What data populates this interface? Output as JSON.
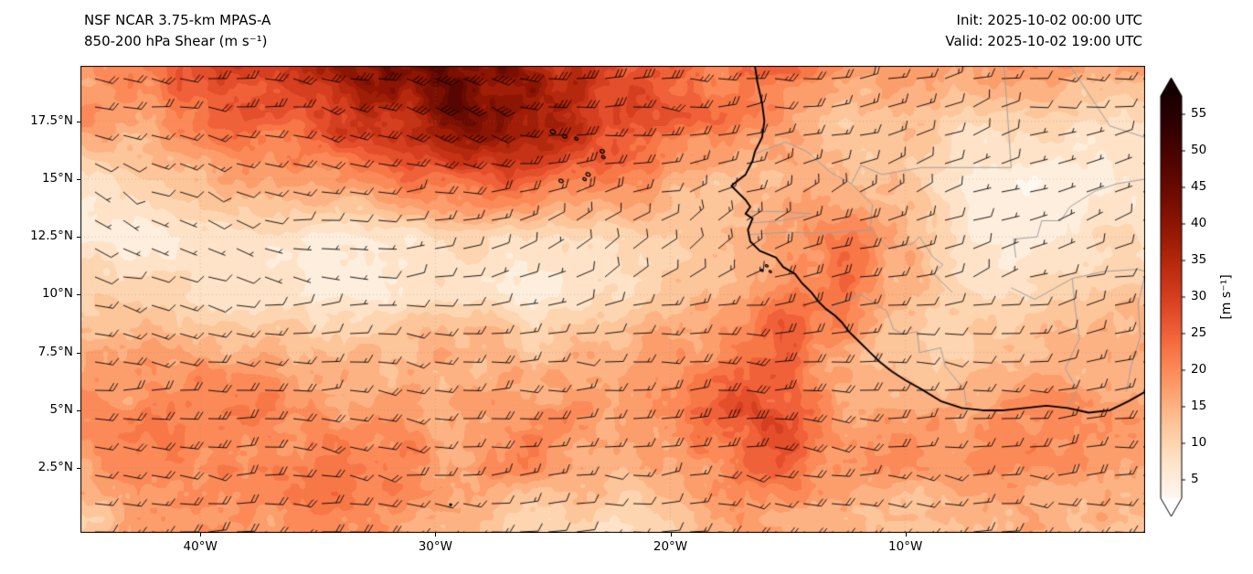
{
  "header": {
    "title_line1": "NSF NCAR 3.75-km MPAS-A",
    "title_line2": "850-200 hPa Shear (m s⁻¹)",
    "init_label": "Init: 2025-10-02 00:00 UTC",
    "valid_label": "Valid: 2025-10-02 19:00 UTC"
  },
  "chart_data": {
    "type": "heatmap",
    "title": "850-200 hPa Shear (m s⁻¹)",
    "model": "NSF NCAR 3.75-km MPAS-A",
    "init_time": "2025-10-02 00:00 UTC",
    "valid_time": "2025-10-02 19:00 UTC",
    "units": "m s⁻¹",
    "extent": {
      "lon_min": -45.1,
      "lon_max": 0.2,
      "lat_min": -0.3,
      "lat_max": 19.9
    },
    "xticks": [
      {
        "value": -40,
        "label": "40°W"
      },
      {
        "value": -30,
        "label": "30°W"
      },
      {
        "value": -20,
        "label": "20°W"
      },
      {
        "value": -10,
        "label": "10°W"
      }
    ],
    "yticks": [
      {
        "value": 17.5,
        "label": "17.5°N"
      },
      {
        "value": 15,
        "label": "15°N"
      },
      {
        "value": 12.5,
        "label": "12.5°N"
      },
      {
        "value": 10,
        "label": "10°N"
      },
      {
        "value": 7.5,
        "label": "7.5°N"
      },
      {
        "value": 5,
        "label": "5°N"
      },
      {
        "value": 2.5,
        "label": "2.5°N"
      }
    ],
    "colorbar": {
      "label": "[m s⁻¹]",
      "tick_values": [
        5,
        10,
        15,
        20,
        25,
        30,
        35,
        40,
        45,
        50,
        55
      ],
      "vmin": 2.5,
      "vmax": 57.5,
      "level_step": 2.5,
      "over_color": "#140000",
      "under_color": "#ffffff",
      "stops": [
        [
          0,
          "#ffffff"
        ],
        [
          2.5,
          "#fff8f1"
        ],
        [
          5,
          "#feeedd"
        ],
        [
          7.5,
          "#fee3c8"
        ],
        [
          10,
          "#fdd5b0"
        ],
        [
          12.5,
          "#fdc59a"
        ],
        [
          15,
          "#fdb283"
        ],
        [
          17.5,
          "#fc9e6c"
        ],
        [
          20,
          "#fc8a58"
        ],
        [
          22.5,
          "#f87747"
        ],
        [
          25,
          "#f16139"
        ],
        [
          27.5,
          "#e54e2b"
        ],
        [
          30,
          "#d63e20"
        ],
        [
          32.5,
          "#c63215"
        ],
        [
          35,
          "#b4280d"
        ],
        [
          37.5,
          "#a01d07"
        ],
        [
          40,
          "#8d1504"
        ],
        [
          42.5,
          "#7a0f02"
        ],
        [
          45,
          "#670a01"
        ],
        [
          47.5,
          "#570601"
        ],
        [
          50,
          "#470300"
        ],
        [
          52.5,
          "#370100"
        ],
        [
          55,
          "#280000"
        ],
        [
          57.5,
          "#1c0000"
        ]
      ]
    },
    "wind_barbs": {
      "full_barb": 10,
      "half_barb": 5,
      "flag": 50,
      "calm_threshold": 2.5
    },
    "grid": {
      "lons": [
        -45,
        -42.5,
        -40,
        -37.5,
        -35,
        -32.5,
        -30,
        -27.5,
        -25,
        -22.5,
        -20,
        -17.5,
        -15,
        -12.5,
        -10,
        -7.5,
        -5,
        -2.5,
        0
      ],
      "lats": [
        20,
        17.5,
        15,
        12.5,
        10,
        7.5,
        5,
        2.5,
        0
      ],
      "shear_ms": [
        [
          22,
          24,
          26,
          28,
          31,
          40,
          46,
          44,
          38,
          33,
          28,
          25,
          22,
          20,
          18,
          17,
          16,
          16,
          18
        ],
        [
          17,
          19,
          21,
          23,
          26,
          31,
          37,
          36,
          32,
          27,
          23,
          19,
          16,
          14,
          12,
          10,
          9,
          9,
          11
        ],
        [
          9,
          11,
          13,
          15,
          17,
          19,
          22,
          24,
          22,
          19,
          15,
          14,
          12,
          14,
          11,
          7,
          5,
          5,
          7
        ],
        [
          6,
          5,
          6,
          7,
          7,
          7,
          8,
          8,
          9,
          9,
          10,
          13,
          17,
          19,
          13,
          8,
          6,
          7,
          9
        ],
        [
          12,
          11,
          9,
          7,
          6,
          6,
          7,
          7,
          6,
          8,
          11,
          16,
          21,
          20,
          14,
          9,
          8,
          10,
          12
        ],
        [
          16,
          18,
          17,
          15,
          15,
          15,
          16,
          17,
          14,
          12,
          18,
          22,
          23,
          17,
          12,
          10,
          12,
          14,
          15
        ],
        [
          18,
          20,
          22,
          21,
          20,
          18,
          18,
          20,
          18,
          15,
          22,
          31,
          26,
          20,
          16,
          15,
          17,
          18,
          18
        ],
        [
          15,
          18,
          21,
          22,
          20,
          19,
          18,
          18,
          16,
          13,
          16,
          21,
          22,
          18,
          16,
          16,
          18,
          18,
          16
        ],
        [
          13,
          16,
          18,
          19,
          18,
          16,
          13,
          12,
          10,
          7,
          11,
          16,
          18,
          16,
          13,
          13,
          16,
          16,
          13
        ]
      ],
      "wind_from_deg": [
        [
          100,
          100,
          100,
          100,
          105,
          105,
          105,
          105,
          100,
          100,
          95,
          95,
          90,
          85,
          80,
          80,
          85,
          90,
          95
        ],
        [
          100,
          100,
          105,
          105,
          105,
          110,
          110,
          105,
          100,
          95,
          90,
          85,
          80,
          75,
          70,
          70,
          75,
          80,
          85
        ],
        [
          120,
          115,
          110,
          105,
          100,
          100,
          95,
          90,
          85,
          80,
          75,
          70,
          65,
          60,
          60,
          65,
          70,
          80,
          90
        ],
        [
          130,
          120,
          110,
          100,
          90,
          80,
          70,
          60,
          50,
          45,
          50,
          60,
          70,
          70,
          65,
          60,
          60,
          70,
          80
        ],
        [
          110,
          105,
          100,
          95,
          90,
          85,
          80,
          75,
          70,
          65,
          70,
          75,
          80,
          85,
          85,
          80,
          75,
          75,
          80
        ],
        [
          95,
          95,
          95,
          95,
          95,
          95,
          95,
          90,
          90,
          85,
          85,
          90,
          95,
          95,
          95,
          90,
          85,
          85,
          85
        ],
        [
          90,
          90,
          90,
          92,
          95,
          95,
          95,
          92,
          90,
          88,
          88,
          92,
          95,
          95,
          92,
          90,
          88,
          88,
          88
        ],
        [
          85,
          88,
          90,
          95,
          100,
          100,
          98,
          95,
          92,
          90,
          90,
          95,
          100,
          100,
          95,
          92,
          90,
          90,
          90
        ],
        [
          80,
          85,
          90,
          95,
          100,
          100,
          95,
          92,
          90,
          88,
          90,
          95,
          100,
          98,
          95,
          92,
          90,
          88,
          85
        ]
      ]
    },
    "coastline": [
      [
        -16.4,
        19.9
      ],
      [
        -16.3,
        19.2
      ],
      [
        -16.1,
        18.3
      ],
      [
        -16.0,
        17.5
      ],
      [
        -16.1,
        16.8
      ],
      [
        -16.4,
        16.2
      ],
      [
        -16.5,
        15.8
      ],
      [
        -16.8,
        15.2
      ],
      [
        -17.3,
        14.8
      ],
      [
        -17.4,
        14.7
      ],
      [
        -17.1,
        14.4
      ],
      [
        -16.8,
        14.1
      ],
      [
        -16.6,
        13.8
      ],
      [
        -16.8,
        13.5
      ],
      [
        -16.5,
        13.3
      ],
      [
        -16.7,
        12.8
      ],
      [
        -16.6,
        12.3
      ],
      [
        -16.2,
        11.9
      ],
      [
        -15.5,
        11.6
      ],
      [
        -15.2,
        11.2
      ],
      [
        -14.7,
        10.9
      ],
      [
        -14.4,
        10.5
      ],
      [
        -14.0,
        10.1
      ],
      [
        -13.7,
        9.7
      ],
      [
        -13.4,
        9.4
      ],
      [
        -13.0,
        9.1
      ],
      [
        -12.7,
        8.8
      ],
      [
        -12.4,
        8.4
      ],
      [
        -12.0,
        8.0
      ],
      [
        -11.5,
        7.5
      ],
      [
        -11.1,
        7.1
      ],
      [
        -10.6,
        6.7
      ],
      [
        -10.0,
        6.3
      ],
      [
        -9.3,
        5.9
      ],
      [
        -8.5,
        5.4
      ],
      [
        -7.6,
        5.1
      ],
      [
        -6.7,
        5.0
      ],
      [
        -5.8,
        5.0
      ],
      [
        -4.9,
        5.1
      ],
      [
        -4.0,
        5.2
      ],
      [
        -3.1,
        5.1
      ],
      [
        -2.2,
        4.9
      ],
      [
        -1.3,
        5.0
      ],
      [
        -0.5,
        5.4
      ],
      [
        0.2,
        5.8
      ]
    ],
    "borders": [
      [
        [
          -16.4,
          16.1
        ],
        [
          -15.1,
          16.6
        ],
        [
          -14.2,
          16.2
        ],
        [
          -13.2,
          15.3
        ],
        [
          -12.3,
          14.8
        ],
        [
          -11.9,
          15.6
        ],
        [
          -11.0,
          15.2
        ],
        [
          -9.3,
          15.5
        ],
        [
          -5.5,
          15.5
        ]
      ],
      [
        [
          -5.5,
          15.5
        ],
        [
          -5.8,
          19.9
        ]
      ],
      [
        [
          -3.0,
          19.9
        ],
        [
          -1.3,
          17.3
        ],
        [
          0.2,
          16.8
        ]
      ],
      [
        [
          -12.3,
          14.8
        ],
        [
          -11.4,
          13.9
        ],
        [
          -11.5,
          12.8
        ],
        [
          -10.7,
          12.0
        ],
        [
          -9.7,
          12.2
        ],
        [
          -9.4,
          12.5
        ],
        [
          -8.8,
          11.6
        ],
        [
          -8.4,
          11.3
        ],
        [
          -8.8,
          10.9
        ],
        [
          -8.0,
          10.1
        ]
      ],
      [
        [
          -16.7,
          12.6
        ],
        [
          -15.0,
          12.7
        ],
        [
          -13.5,
          12.65
        ],
        [
          -11.5,
          12.8
        ]
      ],
      [
        [
          -16.6,
          13.6
        ],
        [
          -15.3,
          13.6
        ],
        [
          -14.0,
          13.5
        ]
      ],
      [
        [
          -16.6,
          13.1
        ],
        [
          -15.3,
          13.2
        ],
        [
          -14.2,
          13.4
        ]
      ],
      [
        [
          -13.3,
          9.05
        ],
        [
          -12.9,
          9.6
        ],
        [
          -11.9,
          10.0
        ],
        [
          -10.8,
          9.3
        ],
        [
          -10.5,
          8.5
        ],
        [
          -10.1,
          8.3
        ]
      ],
      [
        [
          -10.1,
          8.3
        ],
        [
          -9.5,
          8.4
        ],
        [
          -9.4,
          7.5
        ],
        [
          -8.5,
          7.7
        ],
        [
          -8.3,
          6.9
        ],
        [
          -7.5,
          5.9
        ],
        [
          -7.4,
          5.2
        ]
      ],
      [
        [
          -3.1,
          5.1
        ],
        [
          -2.7,
          5.9
        ],
        [
          -3.2,
          6.8
        ],
        [
          -2.6,
          8.1
        ],
        [
          -2.8,
          9.6
        ],
        [
          -2.9,
          10.7
        ]
      ],
      [
        [
          -5.5,
          10.3
        ],
        [
          -4.5,
          9.8
        ],
        [
          -2.9,
          10.7
        ],
        [
          -1.6,
          11.0
        ],
        [
          -0.1,
          11.1
        ],
        [
          0.2,
          11.0
        ]
      ],
      [
        [
          -5.3,
          11.6
        ],
        [
          -5.4,
          12.4
        ],
        [
          -4.4,
          12.5
        ],
        [
          -4.2,
          13.2
        ],
        [
          -3.4,
          13.2
        ],
        [
          -3.0,
          13.8
        ],
        [
          -1.9,
          14.5
        ],
        [
          -1.0,
          14.8
        ],
        [
          0.2,
          15.0
        ]
      ],
      [
        [
          -0.6,
          5.8
        ],
        [
          -0.4,
          6.9
        ],
        [
          0.0,
          8.2
        ],
        [
          -0.1,
          9.6
        ],
        [
          0.2,
          10.9
        ]
      ]
    ],
    "islands": [
      [
        -25.0,
        17.05,
        3
      ],
      [
        -24.5,
        16.85,
        2.5
      ],
      [
        -24.0,
        16.75,
        2
      ],
      [
        -22.9,
        16.2,
        2.5
      ],
      [
        -22.85,
        15.95,
        2
      ],
      [
        -23.5,
        15.2,
        2.5
      ],
      [
        -23.65,
        15.0,
        2
      ],
      [
        -24.65,
        14.92,
        2.5
      ],
      [
        -15.9,
        11.25,
        1.6
      ],
      [
        -16.1,
        11.05,
        1.4
      ],
      [
        -15.75,
        11.0,
        1.4
      ],
      [
        -29.35,
        0.92,
        1.1
      ]
    ],
    "gridlines": true
  },
  "colors": {
    "coastline": "#000000",
    "country_borders": "#a0a0a0",
    "background": "#ffffff"
  }
}
